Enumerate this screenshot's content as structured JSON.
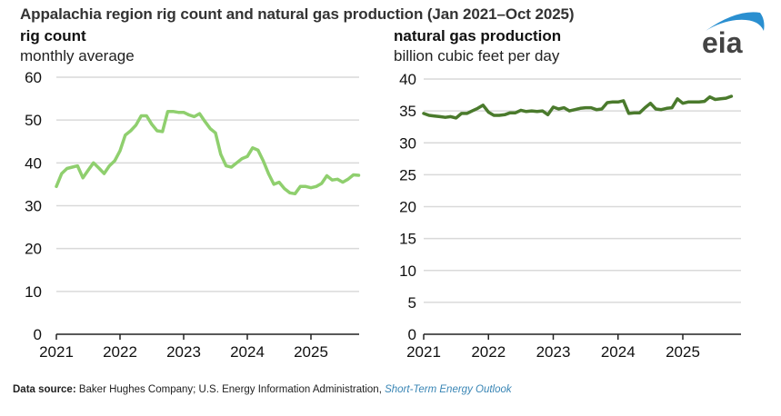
{
  "header": {
    "title": "Appalachia region rig count and natural gas production (Jan 2021–Oct 2025)",
    "logo_text": "eia"
  },
  "footer": {
    "label": "Data source:",
    "text": " Baker Hughes Company; U.S. Energy Information Administration, ",
    "link": "Short-Term Energy Outlook"
  },
  "colors": {
    "rig_line": "#8fcf6e",
    "gas_line": "#4a7a2c",
    "grid": "#d9d9d9",
    "axis": "#222222",
    "logo_arc": "#2a8fd0",
    "logo_text": "#444444",
    "link": "#3a86b5"
  },
  "chart_data": [
    {
      "type": "line",
      "title": "rig count",
      "subtitle": "monthly average",
      "xlabel": "",
      "ylabel": "",
      "ylim": [
        0,
        60
      ],
      "yticks": [
        0,
        10,
        20,
        30,
        40,
        50,
        60
      ],
      "xticks": [
        "2021",
        "2022",
        "2023",
        "2024",
        "2025"
      ],
      "x_range": [
        "2021-01",
        "2025-10"
      ],
      "grid": true,
      "series": [
        {
          "name": "rig count",
          "x_start": "2021-01",
          "frequency": "monthly",
          "values": [
            34.5,
            37.5,
            38.7,
            39.0,
            39.3,
            36.5,
            38.3,
            40.0,
            38.8,
            37.5,
            39.3,
            40.5,
            42.8,
            46.5,
            47.5,
            48.8,
            51.0,
            51.0,
            49.0,
            47.5,
            47.3,
            52.0,
            52.0,
            51.8,
            51.8,
            51.2,
            50.8,
            51.5,
            49.7,
            48.0,
            47.0,
            42.0,
            39.3,
            39.0,
            40.0,
            41.0,
            41.5,
            43.5,
            43.0,
            40.5,
            37.5,
            35.0,
            35.5,
            34.0,
            33.0,
            32.8,
            34.5,
            34.5,
            34.2,
            34.5,
            35.2,
            37.0,
            36.0,
            36.2,
            35.5,
            36.2,
            37.2,
            37.1
          ],
          "color": "#8fcf6e"
        }
      ]
    },
    {
      "type": "line",
      "title": "natural gas production",
      "subtitle": "billion cubic feet per day",
      "xlabel": "",
      "ylabel": "",
      "ylim": [
        0,
        40
      ],
      "yticks": [
        0,
        5,
        10,
        15,
        20,
        25,
        30,
        35,
        40
      ],
      "xticks": [
        "2021",
        "2022",
        "2023",
        "2024",
        "2025"
      ],
      "x_range": [
        "2021-01",
        "2025-10"
      ],
      "grid": true,
      "series": [
        {
          "name": "natural gas production",
          "x_start": "2021-01",
          "frequency": "monthly",
          "values": [
            34.6,
            34.3,
            34.2,
            34.1,
            34.0,
            34.1,
            33.9,
            34.6,
            34.6,
            35.0,
            35.4,
            35.9,
            34.8,
            34.3,
            34.3,
            34.4,
            34.7,
            34.7,
            35.1,
            34.9,
            35.0,
            34.9,
            35.0,
            34.4,
            35.6,
            35.3,
            35.5,
            35.0,
            35.2,
            35.4,
            35.5,
            35.5,
            35.2,
            35.3,
            36.3,
            36.4,
            36.4,
            36.6,
            34.6,
            34.7,
            34.7,
            35.5,
            36.2,
            35.3,
            35.2,
            35.4,
            35.5,
            36.9,
            36.2,
            36.4,
            36.4,
            36.4,
            36.5,
            37.2,
            36.8,
            36.9,
            37.0,
            37.3
          ],
          "color": "#4a7a2c"
        }
      ]
    }
  ]
}
